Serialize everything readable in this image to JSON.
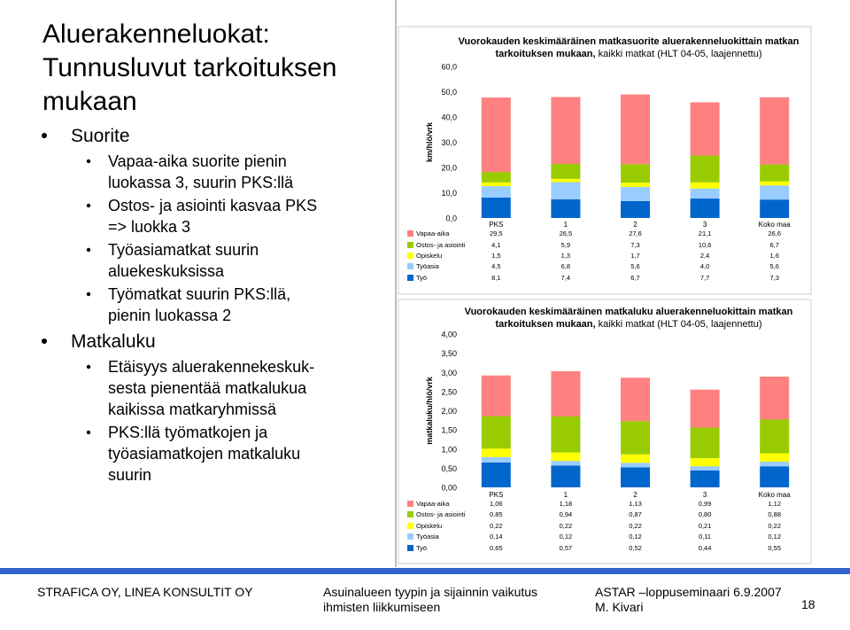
{
  "slide": {
    "title_lines": [
      "Aluerakenneluokat:",
      "Tunnusluvut tarkoituksen",
      "mukaan"
    ],
    "bullets": [
      {
        "level": 1,
        "lines": [
          "Suorite"
        ]
      },
      {
        "level": 2,
        "lines": [
          "Vapaa-aika suorite pienin",
          "luokassa 3, suurin PKS:llä"
        ]
      },
      {
        "level": 2,
        "lines": [
          "Ostos- ja asiointi kasvaa PKS",
          "=> luokka 3"
        ]
      },
      {
        "level": 2,
        "lines": [
          "Työasiamatkat suurin",
          "aluekeskuksissa"
        ]
      },
      {
        "level": 2,
        "lines": [
          "Työmatkat suurin PKS:llä,",
          "pienin luokassa 2"
        ]
      },
      {
        "level": 1,
        "lines": [
          "Matkaluku"
        ]
      },
      {
        "level": 2,
        "lines": [
          "Etäisyys aluerakennekeskuk-",
          "sesta pienentää matkalukua",
          "kaikissa matkaryhmissä"
        ]
      },
      {
        "level": 2,
        "lines": [
          "PKS:llä työmatkojen ja",
          "työasiamatkojen matkaluku",
          "suurin"
        ]
      }
    ],
    "footer": {
      "left": "STRAFICA OY, LINEA KONSULTIT OY",
      "center_lines": [
        "Asuinalueen tyypin ja sijainnin vaikutus",
        "ihmisten liikkumiseen"
      ],
      "right_lines": [
        "ASTAR –loppuseminaari 6.9.2007",
        "M. Kivari"
      ],
      "page": "18"
    }
  },
  "chart_data": [
    {
      "type": "bar",
      "stacked": true,
      "title": "Vuorokauden keskimääräinen matkasuorite aluerakenneluokittain matkan tarkoituksen mukaan,",
      "subtitle": "kaikki matkat (HLT 04-05, laajennettu)",
      "y_label": "km/hlö/vrk",
      "categories": [
        "PKS",
        "1",
        "2",
        "3",
        "Koko maa"
      ],
      "ylim": [
        0,
        60
      ],
      "yticks": [
        {
          "value": 0,
          "label": "0,0"
        },
        {
          "value": 10,
          "label": "10,0"
        },
        {
          "value": 20,
          "label": "20,0"
        },
        {
          "value": 30,
          "label": "30,0"
        },
        {
          "value": 40,
          "label": "40,0"
        },
        {
          "value": 50,
          "label": "50,0"
        },
        {
          "value": 60,
          "label": "60,0"
        }
      ],
      "series": [
        {
          "name": "Vapaa-aika",
          "color": "#ff8080",
          "values": [
            29.5,
            26.5,
            27.6,
            21.1,
            26.6
          ],
          "value_labels": [
            "29,5",
            "26,5",
            "27,6",
            "21,1",
            "26,6"
          ]
        },
        {
          "name": "Ostos- ja asiointi",
          "color": "#99cc00",
          "values": [
            4.1,
            5.9,
            7.3,
            10.6,
            6.7
          ],
          "value_labels": [
            "4,1",
            "5,9",
            "7,3",
            "10,6",
            "6,7"
          ]
        },
        {
          "name": "Opiskelu",
          "color": "#ffff00",
          "values": [
            1.5,
            1.3,
            1.7,
            2.4,
            1.6
          ],
          "value_labels": [
            "1,5",
            "1,3",
            "1,7",
            "2,4",
            "1,6"
          ]
        },
        {
          "name": "Työasia",
          "color": "#99ccff",
          "values": [
            4.5,
            6.8,
            5.6,
            4.0,
            5.6
          ],
          "value_labels": [
            "4,5",
            "6,8",
            "5,6",
            "4,0",
            "5,6"
          ]
        },
        {
          "name": "Työ",
          "color": "#0066cc",
          "values": [
            8.1,
            7.4,
            6.7,
            7.7,
            7.3
          ],
          "value_labels": [
            "8,1",
            "7,4",
            "6,7",
            "7,7",
            "7,3"
          ]
        }
      ]
    },
    {
      "type": "bar",
      "stacked": true,
      "title": "Vuorokauden keskimääräinen matkaluku aluerakenneluokittain matkan tarkoituksen mukaan,",
      "subtitle": "kaikki matkat (HLT 04-05, laajennettu)",
      "y_label": "matkaluku/hlö/vrk",
      "categories": [
        "PKS",
        "1",
        "2",
        "3",
        "Koko maa"
      ],
      "ylim": [
        0,
        4
      ],
      "yticks": [
        {
          "value": 0,
          "label": "0,00"
        },
        {
          "value": 0.5,
          "label": "0,50"
        },
        {
          "value": 1,
          "label": "1,00"
        },
        {
          "value": 1.5,
          "label": "1,50"
        },
        {
          "value": 2,
          "label": "2,00"
        },
        {
          "value": 2.5,
          "label": "2,50"
        },
        {
          "value": 3,
          "label": "3,00"
        },
        {
          "value": 3.5,
          "label": "3,50"
        },
        {
          "value": 4,
          "label": "4,00"
        }
      ],
      "series": [
        {
          "name": "Vapaa-aika",
          "color": "#ff8080",
          "values": [
            1.06,
            1.18,
            1.13,
            0.99,
            1.12
          ],
          "value_labels": [
            "1,06",
            "1,18",
            "1,13",
            "0,99",
            "1,12"
          ]
        },
        {
          "name": "Ostos- ja asiointi",
          "color": "#99cc00",
          "values": [
            0.85,
            0.94,
            0.87,
            0.8,
            0.88
          ],
          "value_labels": [
            "0,85",
            "0,94",
            "0,87",
            "0,80",
            "0,88"
          ]
        },
        {
          "name": "Opiskelu",
          "color": "#ffff00",
          "values": [
            0.22,
            0.22,
            0.22,
            0.21,
            0.22
          ],
          "value_labels": [
            "0,22",
            "0,22",
            "0,22",
            "0,21",
            "0,22"
          ]
        },
        {
          "name": "Työasia",
          "color": "#99ccff",
          "values": [
            0.14,
            0.12,
            0.12,
            0.11,
            0.12
          ],
          "value_labels": [
            "0,14",
            "0,12",
            "0,12",
            "0,11",
            "0,12"
          ]
        },
        {
          "name": "Työ",
          "color": "#0066cc",
          "values": [
            0.65,
            0.57,
            0.52,
            0.44,
            0.55
          ],
          "value_labels": [
            "0,65",
            "0,57",
            "0,52",
            "0,44",
            "0,55"
          ]
        }
      ]
    }
  ]
}
